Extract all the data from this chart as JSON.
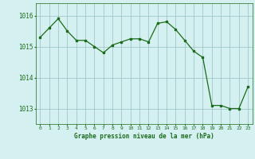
{
  "x": [
    0,
    1,
    2,
    3,
    4,
    5,
    6,
    7,
    8,
    9,
    10,
    11,
    12,
    13,
    14,
    15,
    16,
    17,
    18,
    19,
    20,
    21,
    22,
    23
  ],
  "y": [
    1015.3,
    1015.6,
    1015.9,
    1015.5,
    1015.2,
    1015.2,
    1015.0,
    1014.8,
    1015.05,
    1015.15,
    1015.25,
    1015.25,
    1015.15,
    1015.75,
    1015.8,
    1015.55,
    1015.2,
    1014.85,
    1014.65,
    1013.1,
    1013.1,
    1013.0,
    1013.0,
    1013.7
  ],
  "line_color": "#1a6b1a",
  "marker_color": "#1a6b1a",
  "bg_color": "#d4f0f0",
  "grid_color": "#a0c8c8",
  "text_color": "#1a6b1a",
  "title": "Graphe pression niveau de la mer (hPa)",
  "xlabel_ticks": [
    "0",
    "1",
    "2",
    "3",
    "4",
    "5",
    "6",
    "7",
    "8",
    "9",
    "10",
    "11",
    "12",
    "13",
    "14",
    "15",
    "16",
    "17",
    "18",
    "19",
    "20",
    "21",
    "22",
    "23"
  ],
  "yticks": [
    1013,
    1014,
    1015,
    1016
  ],
  "ylim": [
    1012.5,
    1016.4
  ],
  "xlim": [
    -0.5,
    23.5
  ]
}
